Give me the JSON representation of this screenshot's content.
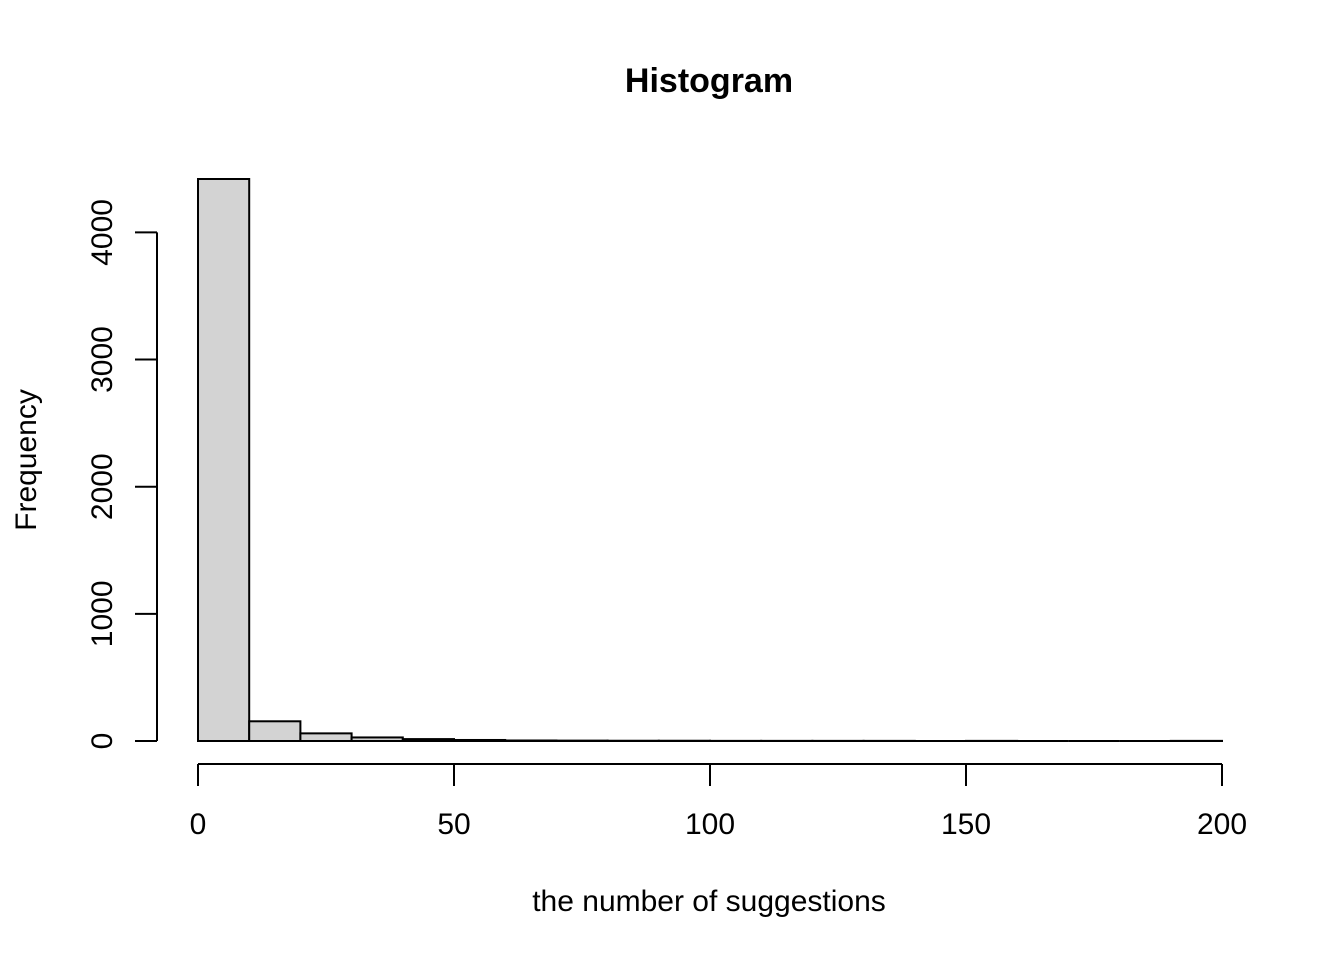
{
  "chart_data": {
    "type": "bar",
    "title": "Histogram",
    "xlabel": "the number of suggestions",
    "ylabel": "Frequency",
    "bin_width": 10,
    "bins": [
      {
        "start": 0,
        "end": 10,
        "value": 4420
      },
      {
        "start": 10,
        "end": 20,
        "value": 155
      },
      {
        "start": 20,
        "end": 30,
        "value": 60
      },
      {
        "start": 30,
        "end": 40,
        "value": 28
      },
      {
        "start": 40,
        "end": 50,
        "value": 15
      },
      {
        "start": 50,
        "end": 60,
        "value": 8
      },
      {
        "start": 60,
        "end": 70,
        "value": 4
      },
      {
        "start": 70,
        "end": 80,
        "value": 3
      },
      {
        "start": 80,
        "end": 90,
        "value": 2
      },
      {
        "start": 90,
        "end": 100,
        "value": 2
      },
      {
        "start": 100,
        "end": 110,
        "value": 1
      },
      {
        "start": 110,
        "end": 120,
        "value": 1
      },
      {
        "start": 120,
        "end": 130,
        "value": 1
      },
      {
        "start": 130,
        "end": 140,
        "value": 1
      },
      {
        "start": 140,
        "end": 150,
        "value": 0
      },
      {
        "start": 150,
        "end": 160,
        "value": 1
      },
      {
        "start": 160,
        "end": 170,
        "value": 0
      },
      {
        "start": 170,
        "end": 180,
        "value": 0
      },
      {
        "start": 180,
        "end": 190,
        "value": 0
      },
      {
        "start": 190,
        "end": 200,
        "value": 1
      }
    ],
    "xlim": [
      0,
      200
    ],
    "ylim": [
      0,
      4420
    ],
    "xticks": [
      0,
      50,
      100,
      150,
      200
    ],
    "yticks": [
      0,
      1000,
      2000,
      3000,
      4000
    ],
    "bar_color": "#d3d3d3",
    "edge_color": "#000000",
    "grid": false,
    "legend": "none"
  }
}
